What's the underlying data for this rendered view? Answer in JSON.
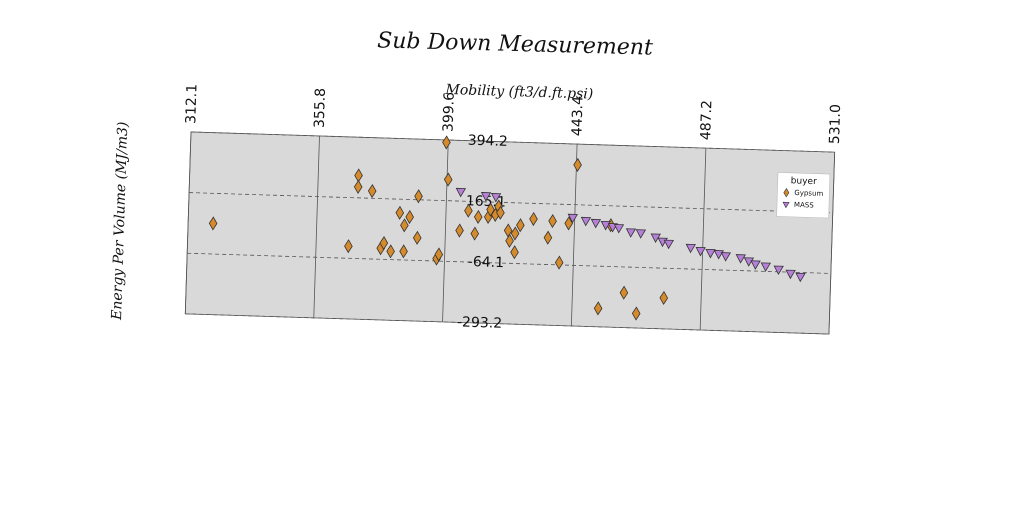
{
  "chart_data": {
    "type": "scatter",
    "title": "Sub Down Measurement",
    "x_label": "Mobility (ft3/d.ft.psi)",
    "y_label": "Energy Per Volume (MJ/m3)",
    "xlim": [
      312.1,
      {
        "value": 531,
        "label": "531.0"
      }
    ],
    "xticks": [
      312.1,
      355.8,
      399.6,
      443.4,
      487.2,
      {
        "value": 531,
        "label": "531.0"
      }
    ],
    "ylim": [
      -293.2,
      394.2
    ],
    "yticks": [
      -293.2,
      -64.1,
      165.1,
      394.2
    ],
    "grid": true,
    "legend_title": "buyer",
    "legend_position": "upper right",
    "series": [
      {
        "name": "Gypsum",
        "color": "#d58a2c",
        "marker": "diamond",
        "x": [
          320.6,
          369.5,
          369.5,
          374.3,
          366.8,
          377.8,
          378.8,
          381.2,
          385.6,
          383.9,
          385.6,
          387.3,
          390.1,
          390.1,
          396.9,
          397.6,
          399,
          400,
          404.4,
          407.2,
          409.6,
          410.6,
          414,
          414.7,
          416.4,
          417.4,
          418.1,
          420.9,
          421.5,
          423.3,
          423.3,
          425,
          429.4,
          434.5,
          435.9,
          438.6,
          441.4,
          443.8,
          452.3,
          460.9,
          465.3,
          474.5,
          455.7
        ],
        "values": [
          51.5,
          249.8,
          206.5,
          192.6,
          -18.5,
          -22.4,
          -2.3,
          -33,
          -31.4,
          113.6,
          66.9,
          99,
          178.4,
          21.2,
          -54.8,
          -38.9,
          385,
          244.9,
          53.9,
          129.7,
          44,
          107.3,
          108.5,
          136.4,
          117.1,
          149,
          125.8,
          59.8,
          20.9,
          -21.6,
          49.1,
          81,
          106.1,
          37.4,
          100.6,
          -55.4,
          93.8,
          315.6,
          -223.6,
          -161.5,
          -238.5,
          -176.4,
          92
        ]
      },
      {
        "name": "MASS",
        "color": "#b67fd8",
        "marker": "triangle-down",
        "x": [
          404.4,
          413,
          416.4,
          442.7,
          447.2,
          450.6,
          454,
          456.4,
          458.5,
          462.6,
          466,
          471.1,
          473.5,
          475.6,
          483.1,
          486.5,
          489.9,
          492.7,
          495.1,
          500.2,
          503,
          505.3,
          508.8,
          513.2,
          517.3,
          520.7
        ],
        "values": [
          199.3,
          186.7,
          184,
          114.8,
          104.6,
          98.3,
          91.6,
          84.5,
          81.4,
          66.9,
          64.5,
          50.3,
          35.6,
          28.3,
          15.4,
          4.7,
          -1.7,
          -4.7,
          -11.8,
          -17.7,
          -28.7,
          -39.3,
          -46,
          -56.2,
          -70.5,
          -80.9
        ]
      }
    ]
  }
}
